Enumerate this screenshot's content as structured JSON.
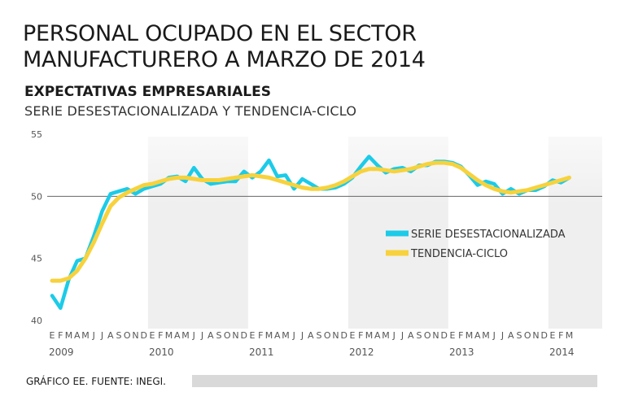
{
  "title_line1": "PERSONAL OCUPADO EN EL SECTOR",
  "title_line2": "MANUFACTURERO A MARZO DE 2014",
  "subtitle": "EXPECTATIVAS EMPRESARIALES",
  "subsubtitle": "SERIE DESESTACIONALIZADA Y TENDENCIA-CICLO",
  "footer": "GRÁFICO EE. FUENTE: INEGI.",
  "colors": {
    "series_cyan": "#1ccbe8",
    "series_yellow": "#f7d23c",
    "shade": "#efefef",
    "axis_text": "#555555",
    "reference_line": "#666666"
  },
  "chart_data": {
    "type": "line",
    "title": "EXPECTATIVAS EMPRESARIALES",
    "xlabel": "",
    "ylabel": "",
    "ylim": [
      40,
      55
    ],
    "yticks": [
      40,
      45,
      50,
      55
    ],
    "reference_value": 50,
    "legend_position": "right",
    "month_labels": [
      "E",
      "F",
      "M",
      "A",
      "M",
      "J",
      "J",
      "A",
      "S",
      "O",
      "N",
      "D",
      "E",
      "F",
      "M",
      "A",
      "M",
      "J",
      "J",
      "A",
      "S",
      "O",
      "N",
      "D",
      "E",
      "F",
      "M",
      "A",
      "M",
      "J",
      "J",
      "A",
      "S",
      "O",
      "N",
      "D",
      "E",
      "F",
      "M",
      "A",
      "M",
      "J",
      "J",
      "A",
      "S",
      "O",
      "N",
      "D",
      "E",
      "F",
      "M",
      "A",
      "M",
      "J",
      "J",
      "A",
      "S",
      "O",
      "N",
      "D",
      "E",
      "F",
      "M"
    ],
    "year_labels": [
      {
        "label": "2009",
        "index": 0
      },
      {
        "label": "2010",
        "index": 12
      },
      {
        "label": "2011",
        "index": 24
      },
      {
        "label": "2012",
        "index": 36
      },
      {
        "label": "2013",
        "index": 48
      },
      {
        "label": "2014",
        "index": 60
      }
    ],
    "series": [
      {
        "name": "SERIE DESESTACIONALIZADA",
        "color": "#1ccbe8",
        "values": [
          42.0,
          41.0,
          43.3,
          44.8,
          45.0,
          46.8,
          48.8,
          50.2,
          50.4,
          50.6,
          50.2,
          50.6,
          50.8,
          51.0,
          51.5,
          51.6,
          51.2,
          52.3,
          51.4,
          51.0,
          51.1,
          51.2,
          51.2,
          52.0,
          51.5,
          52.0,
          52.9,
          51.6,
          51.7,
          50.6,
          51.4,
          51.0,
          50.6,
          50.6,
          50.7,
          51.0,
          51.5,
          52.4,
          53.2,
          52.5,
          51.9,
          52.2,
          52.3,
          52.0,
          52.5,
          52.5,
          52.8,
          52.8,
          52.7,
          52.4,
          51.7,
          50.9,
          51.2,
          51.0,
          50.2,
          50.6,
          50.2,
          50.5,
          50.5,
          50.8,
          51.3,
          51.1,
          51.5
        ]
      },
      {
        "name": "TENDENCIA-CICLO",
        "color": "#f7d23c",
        "values": [
          43.2,
          43.2,
          43.4,
          44.0,
          45.0,
          46.3,
          47.8,
          49.2,
          49.9,
          50.3,
          50.6,
          50.9,
          51.0,
          51.2,
          51.4,
          51.5,
          51.5,
          51.4,
          51.3,
          51.3,
          51.3,
          51.4,
          51.5,
          51.6,
          51.7,
          51.6,
          51.5,
          51.3,
          51.1,
          50.9,
          50.7,
          50.6,
          50.6,
          50.7,
          50.9,
          51.2,
          51.6,
          52.0,
          52.2,
          52.2,
          52.1,
          52.0,
          52.1,
          52.2,
          52.4,
          52.6,
          52.7,
          52.7,
          52.6,
          52.3,
          51.8,
          51.3,
          50.9,
          50.6,
          50.4,
          50.3,
          50.4,
          50.5,
          50.7,
          50.9,
          51.1,
          51.3,
          51.5
        ]
      }
    ]
  }
}
